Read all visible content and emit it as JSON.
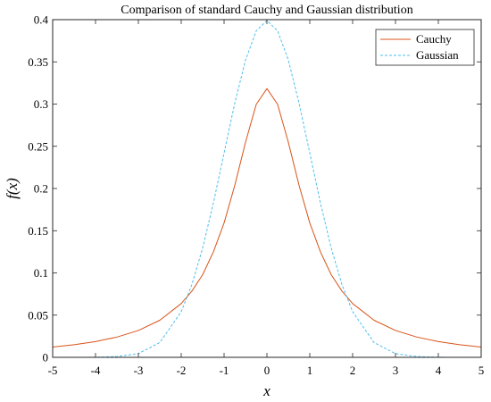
{
  "chart_data": {
    "type": "line",
    "title": "Comparison of standard Cauchy and Gaussian distribution",
    "xlabel": "x",
    "ylabel": "f(x)",
    "xlim": [
      -5,
      5
    ],
    "ylim": [
      0,
      0.4
    ],
    "x_ticks": [
      "-5",
      "-4",
      "-3",
      "-2",
      "-1",
      "0",
      "1",
      "2",
      "3",
      "4",
      "5"
    ],
    "y_ticks": [
      "0",
      "0.05",
      "0.1",
      "0.15",
      "0.2",
      "0.25",
      "0.3",
      "0.35",
      "0.4"
    ],
    "grid": false,
    "legend_position": "top-right",
    "x": [
      -5,
      -4.5,
      -4,
      -3.5,
      -3,
      -2.5,
      -2,
      -1.75,
      -1.5,
      -1.25,
      -1,
      -0.75,
      -0.5,
      -0.25,
      0,
      0.25,
      0.5,
      0.75,
      1,
      1.25,
      1.5,
      1.75,
      2,
      2.5,
      3,
      3.5,
      4,
      4.5,
      5
    ],
    "series": [
      {
        "name": "Cauchy",
        "color": "#d95319",
        "line_style": "solid",
        "values": [
          0.0122,
          0.0149,
          0.0187,
          0.024,
          0.0318,
          0.0439,
          0.0637,
          0.0785,
          0.0979,
          0.1248,
          0.1592,
          0.2037,
          0.2546,
          0.2996,
          0.3183,
          0.2996,
          0.2546,
          0.2037,
          0.1592,
          0.1248,
          0.0979,
          0.0785,
          0.0637,
          0.0439,
          0.0318,
          0.024,
          0.0187,
          0.0149,
          0.0122
        ]
      },
      {
        "name": "Gaussian",
        "color": "#4dbeee",
        "line_style": "dashed",
        "values": [
          0.0,
          0.0,
          0.0001,
          0.0009,
          0.0044,
          0.0175,
          0.054,
          0.0863,
          0.1295,
          0.1826,
          0.242,
          0.3011,
          0.3521,
          0.3867,
          0.3989,
          0.3867,
          0.3521,
          0.3011,
          0.242,
          0.1826,
          0.1295,
          0.0863,
          0.054,
          0.0175,
          0.0044,
          0.0009,
          0.0001,
          0.0,
          0.0
        ]
      }
    ]
  }
}
